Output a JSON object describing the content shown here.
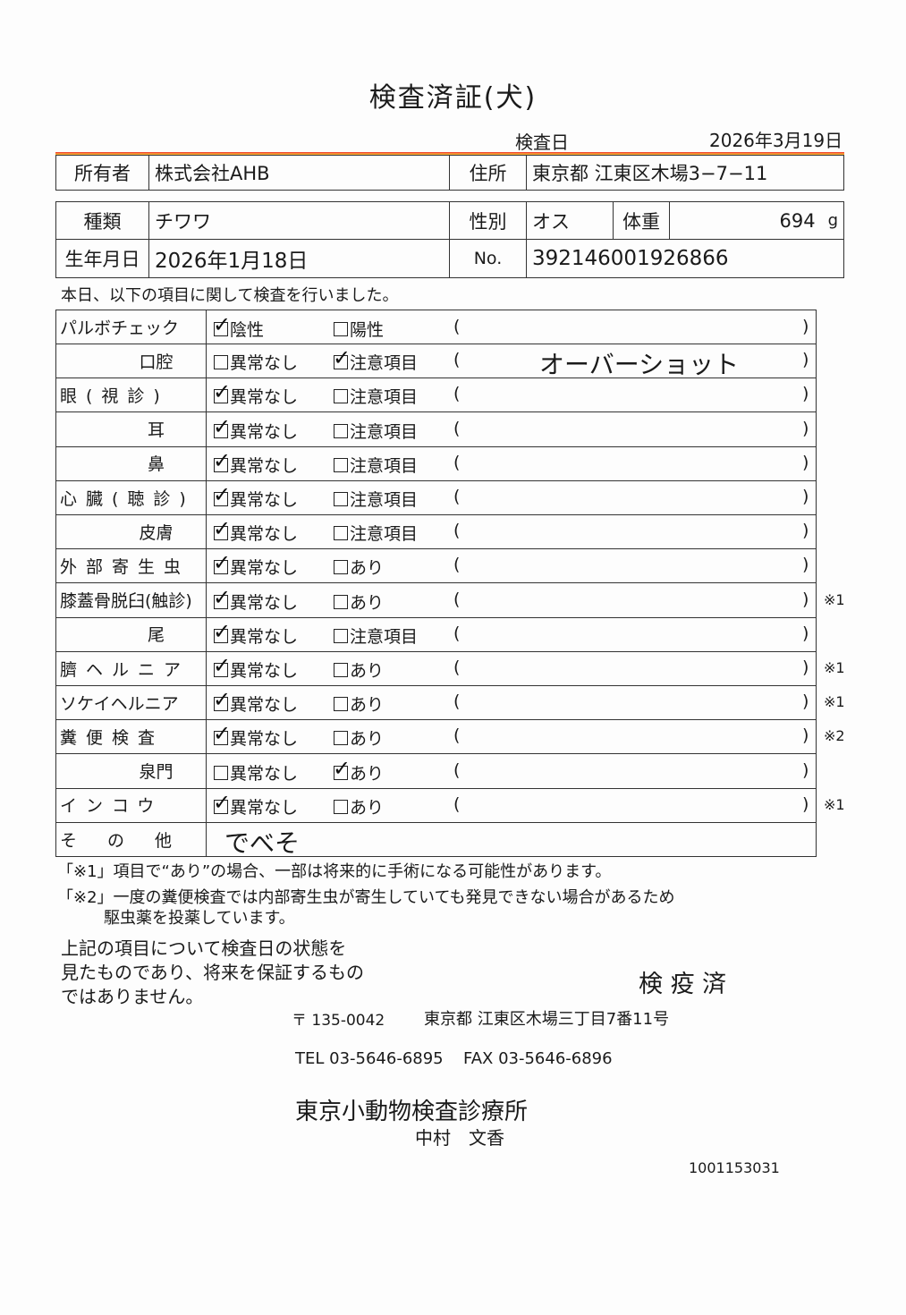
{
  "title": "検査済証(犬)",
  "exam_date_label": "検査日",
  "exam_date": "2026年3月19日",
  "owner": {
    "label": "所有者",
    "value": "株式会社AHB",
    "address_label": "住所",
    "address": "東京都 江東区木場3−7−11"
  },
  "pet": {
    "type_label": "種類",
    "type": "チワワ",
    "sex_label": "性別",
    "sex": "オス",
    "weight_label": "体重",
    "weight": "694",
    "weight_unit": "g",
    "dob_label": "生年月日",
    "dob": "2026年1月18日",
    "no_label": "No.",
    "no": "392146001926866"
  },
  "intro": "本日、以下の項目に関して検査を行いました。",
  "paren_open": "(",
  "paren_close": ")",
  "items": [
    {
      "label": "パルボチェック",
      "opt1": "陰性",
      "opt2": "陽性",
      "checked": 1,
      "note": "",
      "mark": ""
    },
    {
      "label": "口腔",
      "opt1": "異常なし",
      "opt2": "注意項目",
      "checked": 2,
      "note": "オーバーショット",
      "mark": ""
    },
    {
      "label": "眼(視診)",
      "opt1": "異常なし",
      "opt2": "注意項目",
      "checked": 1,
      "note": "",
      "mark": ""
    },
    {
      "label": "耳",
      "opt1": "異常なし",
      "opt2": "注意項目",
      "checked": 1,
      "note": "",
      "mark": ""
    },
    {
      "label": "鼻",
      "opt1": "異常なし",
      "opt2": "注意項目",
      "checked": 1,
      "note": "",
      "mark": ""
    },
    {
      "label": "心臓(聴診)",
      "opt1": "異常なし",
      "opt2": "注意項目",
      "checked": 1,
      "note": "",
      "mark": ""
    },
    {
      "label": "皮膚",
      "opt1": "異常なし",
      "opt2": "注意項目",
      "checked": 1,
      "note": "",
      "mark": ""
    },
    {
      "label": "外部寄生虫",
      "opt1": "異常なし",
      "opt2": "あり",
      "checked": 1,
      "note": "",
      "mark": ""
    },
    {
      "label": "膝蓋骨脱臼(触診)",
      "opt1": "異常なし",
      "opt2": "あり",
      "checked": 1,
      "note": "",
      "mark": "※1"
    },
    {
      "label": "尾",
      "opt1": "異常なし",
      "opt2": "注意項目",
      "checked": 1,
      "note": "",
      "mark": ""
    },
    {
      "label": "臍ヘルニア",
      "opt1": "異常なし",
      "opt2": "あり",
      "checked": 1,
      "note": "",
      "mark": "※1"
    },
    {
      "label": "ソケイヘルニア",
      "opt1": "異常なし",
      "opt2": "あり",
      "checked": 1,
      "note": "",
      "mark": "※1"
    },
    {
      "label": "糞便検査",
      "opt1": "異常なし",
      "opt2": "あり",
      "checked": 1,
      "note": "",
      "mark": "※2"
    },
    {
      "label": "泉門",
      "opt1": "異常なし",
      "opt2": "あり",
      "checked": 2,
      "note": "",
      "mark": ""
    },
    {
      "label": "インコウ",
      "opt1": "異常なし",
      "opt2": "あり",
      "checked": 1,
      "note": "",
      "mark": "※1"
    }
  ],
  "other": {
    "label": "その他",
    "value": "でべそ"
  },
  "footnote1": "「※1」項目で“あり”の場合、一部は将来的に手術になる可能性があります。",
  "footnote2a": "「※2」一度の糞便検査では内部寄生虫が寄生していても発見できない場合があるため",
  "footnote2b": "駆虫薬を投薬しています。",
  "disclaimer": [
    "上記の項目について検査日の状態を",
    "見たものであり、将来を保証するもの",
    "ではありません。"
  ],
  "stamp": "検 疫 済",
  "postal": "〒 135-0042",
  "clinic_address": "東京都 江東区木場三丁目7番11号",
  "tel": "TEL 03-5646-6895",
  "fax": "FAX 03-5646-6896",
  "clinic_name": "東京小動物検査診療所",
  "doctor": "中村　文香",
  "doc_number": "1001153031"
}
